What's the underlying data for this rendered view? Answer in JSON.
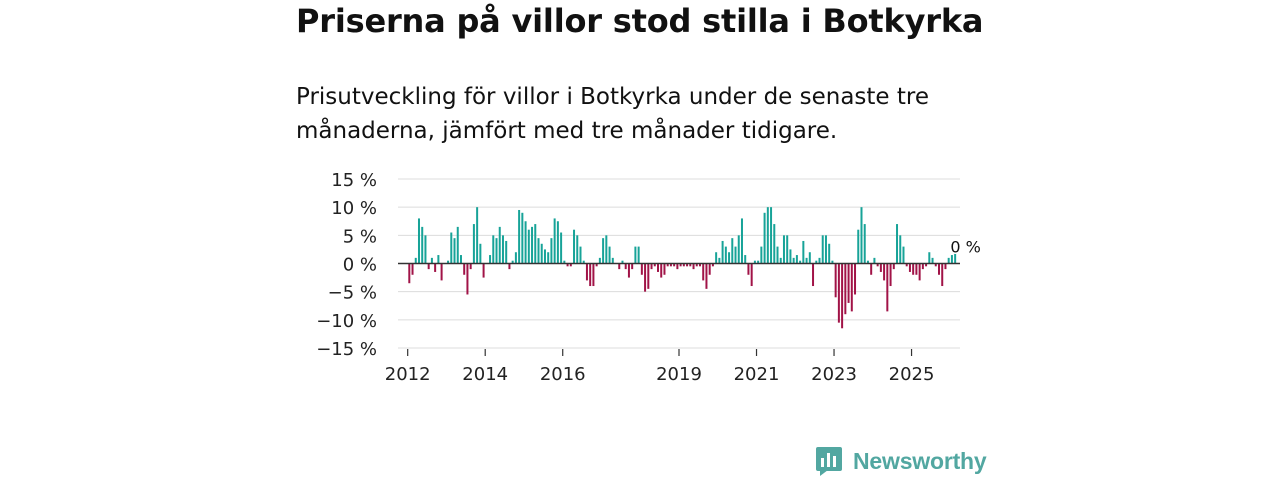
{
  "header": {
    "title": "Priserna på villor stod stilla i Botkyrka",
    "subtitle": "Prisutveckling för villor i Botkyrka under de senaste tre månaderna, jämfört med tre månader tidigare."
  },
  "brand": {
    "name": "Newsworthy",
    "color": "#52a7a1"
  },
  "colors": {
    "positive": "#17a398",
    "negative": "#a11347",
    "zero_line": "#333333",
    "grid": "#dcdcdc"
  },
  "chart_data": {
    "type": "bar",
    "title": "Priserna på villor stod stilla i Botkyrka",
    "xlabel": "",
    "ylabel": "",
    "ylim": [
      -15,
      15
    ],
    "yticks": [
      15,
      10,
      5,
      0,
      -5,
      -10,
      -15
    ],
    "ytick_labels": [
      "15 %",
      "10 %",
      "5 %",
      "0 %",
      "−5 %",
      "−10 %",
      "−15 %"
    ],
    "x_range": [
      2011.75,
      2026.25
    ],
    "xticks": [
      {
        "value": 2012,
        "label": "2012"
      },
      {
        "value": 2014,
        "label": "2014"
      },
      {
        "value": 2016,
        "label": "2016"
      },
      {
        "value": 2019,
        "label": "2019"
      },
      {
        "value": 2021,
        "label": "2021"
      },
      {
        "value": 2023,
        "label": "2023"
      },
      {
        "value": 2025,
        "label": "2025"
      }
    ],
    "start_year": 2012,
    "start_month": 1,
    "unit": "percent",
    "values": [
      -3.5,
      -2.0,
      1.0,
      8.0,
      6.5,
      5.0,
      -1.0,
      1.0,
      -1.5,
      1.5,
      -3.0,
      0.0,
      0.5,
      5.5,
      4.5,
      6.5,
      1.5,
      -2.0,
      -5.5,
      -1.0,
      7.0,
      10.0,
      3.5,
      -2.5,
      0.0,
      1.5,
      5.0,
      4.5,
      6.5,
      5.0,
      4.0,
      -1.0,
      0.5,
      2.0,
      9.5,
      9.0,
      7.5,
      6.0,
      6.5,
      7.0,
      4.5,
      3.5,
      2.5,
      2.0,
      4.5,
      8.0,
      7.5,
      5.5,
      0.5,
      -0.5,
      -0.5,
      6.0,
      5.0,
      3.0,
      0.5,
      -3.0,
      -4.0,
      -4.0,
      -0.5,
      1.0,
      4.5,
      5.0,
      3.0,
      1.0,
      0.0,
      -1.0,
      0.5,
      -1.0,
      -2.5,
      -1.0,
      3.0,
      3.0,
      -2.0,
      -5.0,
      -4.5,
      -1.0,
      -0.5,
      -1.5,
      -2.5,
      -2.0,
      -0.5,
      -0.5,
      -0.5,
      -1.0,
      -0.5,
      -0.5,
      -0.5,
      -0.5,
      -1.0,
      -0.5,
      -0.5,
      -3.0,
      -4.5,
      -2.0,
      -0.5,
      2.0,
      1.0,
      4.0,
      3.0,
      2.0,
      4.5,
      3.0,
      5.0,
      8.0,
      1.5,
      -2.0,
      -4.0,
      0.5,
      0.5,
      3.0,
      9.0,
      10.0,
      10.0,
      7.0,
      3.0,
      1.0,
      5.0,
      5.0,
      2.5,
      1.0,
      1.5,
      0.5,
      4.0,
      1.0,
      2.0,
      -4.0,
      0.5,
      1.0,
      5.0,
      5.0,
      3.5,
      0.5,
      -6.0,
      -10.5,
      -11.5,
      -9.0,
      -7.0,
      -8.5,
      -5.5,
      6.0,
      10.0,
      7.0,
      0.5,
      -2.0,
      1.0,
      -0.5,
      -1.5,
      -3.0,
      -8.5,
      -4.0,
      -1.0,
      7.0,
      5.0,
      3.0,
      -0.5,
      -1.5,
      -2.0,
      -2.0,
      -3.0,
      -1.0,
      -0.5,
      2.0,
      1.0,
      -0.5,
      -2.0,
      -4.0,
      -1.0,
      1.0,
      1.5,
      2.0,
      0.0
    ],
    "value_label": {
      "text": "0 %",
      "index": 170
    }
  }
}
